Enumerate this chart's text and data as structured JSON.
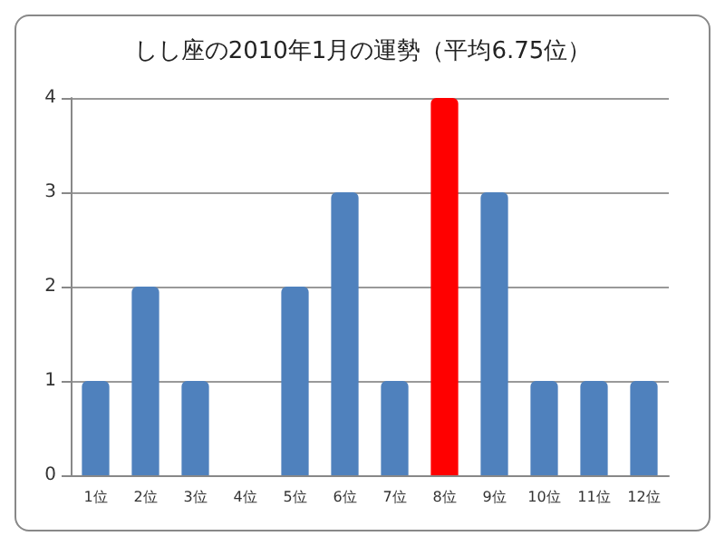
{
  "chart_data": {
    "type": "bar",
    "title": "しし座の2010年1月の運勢（平均6.75位）",
    "categories": [
      "1位",
      "2位",
      "3位",
      "4位",
      "5位",
      "6位",
      "7位",
      "8位",
      "9位",
      "10位",
      "11位",
      "12位"
    ],
    "values": [
      1,
      2,
      1,
      0,
      2,
      3,
      1,
      4,
      3,
      1,
      1,
      1
    ],
    "colors": [
      "#4f81bd",
      "#4f81bd",
      "#4f81bd",
      "#4f81bd",
      "#4f81bd",
      "#4f81bd",
      "#4f81bd",
      "#ff0000",
      "#4f81bd",
      "#4f81bd",
      "#4f81bd",
      "#4f81bd"
    ],
    "ylim": [
      0,
      4
    ],
    "yticks": [
      0,
      1,
      2,
      3,
      4
    ],
    "grid": "y"
  }
}
